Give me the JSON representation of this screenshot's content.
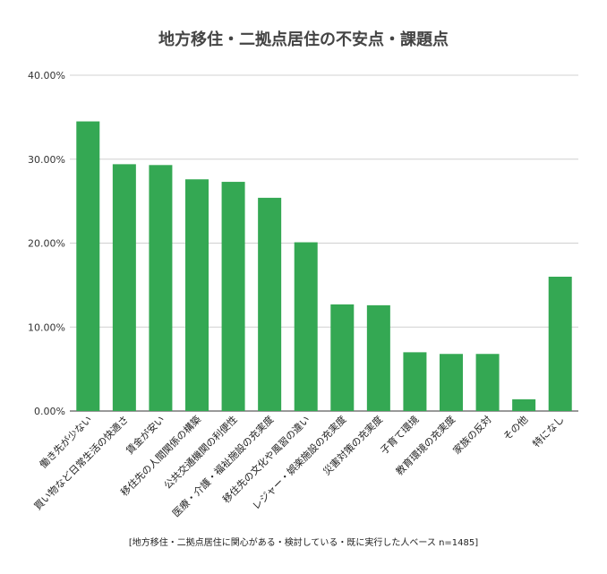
{
  "chart_data": {
    "type": "bar",
    "title": "地方移住・二拠点居住の不安点・課題点",
    "note": "[地方移住・二拠点居住に関心がある・検討している・既に実行した人ベース n=1485]",
    "categories": [
      "働き先が少ない",
      "買い物など日常生活の快適さ",
      "賃金が安い",
      "移住先の人間関係の構築",
      "公共交通機関の利便性",
      "医療・介護・福祉施設の充実度",
      "移住先の文化や風習の違い",
      "レジャー・娯楽施設の充実度",
      "災害対策の充実度",
      "子育て環境",
      "教育環境の充実度",
      "家族の反対",
      "その他",
      "特になし"
    ],
    "values": [
      34.5,
      29.4,
      29.3,
      27.6,
      27.3,
      25.4,
      20.1,
      12.7,
      12.6,
      7.0,
      6.8,
      6.8,
      1.4,
      16.0
    ],
    "ylim": [
      0,
      40
    ],
    "yticks": [
      "0.00%",
      "10.00%",
      "20.00%",
      "30.00%",
      "40.00%"
    ],
    "bar_color": "#34a853",
    "grid": true
  }
}
